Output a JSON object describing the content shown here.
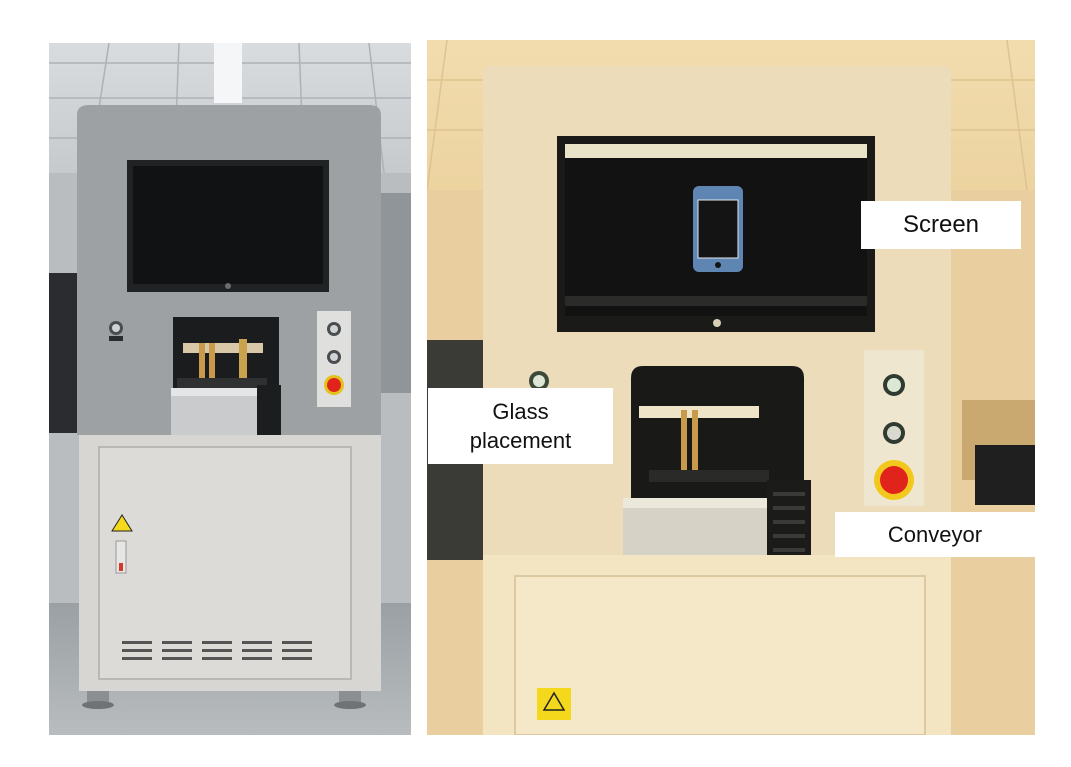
{
  "annotations": {
    "screen": "Screen",
    "glass_placement_line1": "Glass",
    "glass_placement_line2": "placement",
    "conveyor": "Conveyor"
  },
  "photos": {
    "left": {
      "tone": "neutral",
      "content": "machine-overview"
    },
    "right": {
      "tone": "warm",
      "content": "machine-front-closeup"
    }
  },
  "colors": {
    "emergency_red": "#e0241b",
    "warning_yellow": "#f3d81c",
    "screen_black": "#141414",
    "phone_blue": "#5f86b3"
  }
}
